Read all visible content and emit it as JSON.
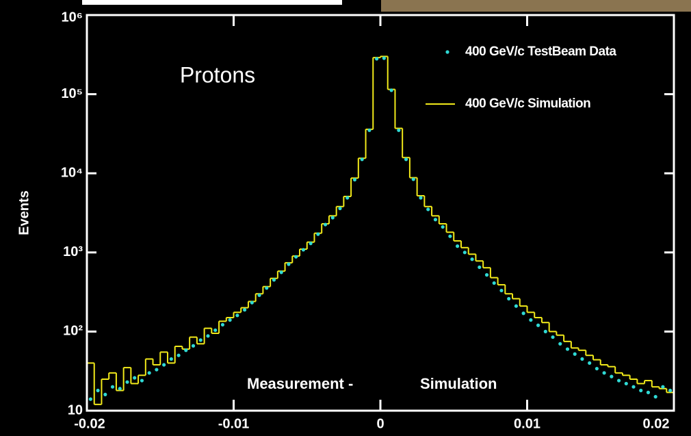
{
  "chart_data": {
    "type": "line",
    "title": "Protons",
    "y_label": "Events",
    "log_y": true,
    "xlim": [
      -0.02,
      0.02
    ],
    "xticks": [
      -0.02,
      -0.01,
      0,
      0.01,
      0.02
    ],
    "ylim": [
      10,
      1000000
    ],
    "yticks": [
      10,
      {
        "value": 100,
        "label": "10²"
      },
      {
        "value": 1000,
        "label": "10³"
      },
      {
        "value": 10000,
        "label": "10⁴"
      },
      {
        "value": 100000,
        "label": "10⁵"
      },
      {
        "value": 1000000,
        "label": "10⁶"
      }
    ],
    "annotations": [
      {
        "text": "Measurement -",
        "color": "#2fd9d4"
      },
      {
        "text": "Simulation",
        "color": "#f2ea1a"
      }
    ],
    "x": [
      -0.01975,
      -0.01925,
      -0.01875,
      -0.01825,
      -0.01775,
      -0.01725,
      -0.01675,
      -0.01625,
      -0.01575,
      -0.01525,
      -0.01475,
      -0.01425,
      -0.01375,
      -0.01325,
      -0.01275,
      -0.01225,
      -0.01175,
      -0.01125,
      -0.01075,
      -0.01025,
      -0.00975,
      -0.00925,
      -0.00875,
      -0.00825,
      -0.00775,
      -0.00725,
      -0.00675,
      -0.00625,
      -0.00575,
      -0.00525,
      -0.00475,
      -0.00425,
      -0.00375,
      -0.00325,
      -0.00275,
      -0.00225,
      -0.00175,
      -0.00125,
      -0.00075,
      -0.00025,
      0.00025,
      0.00075,
      0.00125,
      0.00175,
      0.00225,
      0.00275,
      0.00325,
      0.00375,
      0.00425,
      0.00475,
      0.00525,
      0.00575,
      0.00625,
      0.00675,
      0.00725,
      0.00775,
      0.00825,
      0.00875,
      0.00925,
      0.00975,
      0.01025,
      0.01075,
      0.01125,
      0.01175,
      0.01225,
      0.01275,
      0.01325,
      0.01375,
      0.01425,
      0.01475,
      0.01525,
      0.01575,
      0.01625,
      0.01675,
      0.01725,
      0.01775,
      0.01825,
      0.01875,
      0.01925,
      0.01975
    ],
    "series": [
      {
        "name": "400 GeV/c TestBeam Data",
        "color": "#2fd9d4",
        "style": "points",
        "values": [
          14,
          18,
          16,
          20,
          19,
          23,
          26,
          24,
          30,
          33,
          38,
          45,
          50,
          58,
          66,
          78,
          88,
          104,
          122,
          140,
          160,
          188,
          232,
          288,
          355,
          450,
          560,
          710,
          880,
          1080,
          1300,
          1700,
          2250,
          2750,
          3600,
          4900,
          8300,
          15000,
          35000,
          280000,
          285000,
          112000,
          35000,
          15000,
          8400,
          4900,
          3500,
          2600,
          2100,
          1600,
          1200,
          1000,
          820,
          650,
          520,
          410,
          330,
          260,
          210,
          170,
          140,
          120,
          100,
          85,
          70,
          60,
          52,
          45,
          40,
          34,
          30,
          27,
          24,
          22,
          20,
          18,
          17,
          15,
          20,
          18
        ]
      },
      {
        "name": "400 GeV/c Simulation",
        "color": "#f2ea1a",
        "style": "steps",
        "values": [
          40,
          12,
          25,
          30,
          18,
          35,
          22,
          28,
          45,
          38,
          55,
          40,
          65,
          60,
          85,
          70,
          110,
          95,
          135,
          150,
          175,
          200,
          240,
          300,
          370,
          470,
          580,
          740,
          900,
          1100,
          1350,
          1750,
          2300,
          2900,
          3800,
          5100,
          8700,
          15500,
          36000,
          290000,
          300000,
          115000,
          37000,
          15800,
          8800,
          5200,
          3800,
          2900,
          2300,
          1800,
          1400,
          1150,
          950,
          780,
          640,
          480,
          390,
          300,
          260,
          210,
          175,
          150,
          130,
          100,
          90,
          75,
          62,
          58,
          50,
          44,
          38,
          36,
          30,
          28,
          25,
          22,
          24,
          20,
          19,
          17
        ]
      }
    ]
  }
}
